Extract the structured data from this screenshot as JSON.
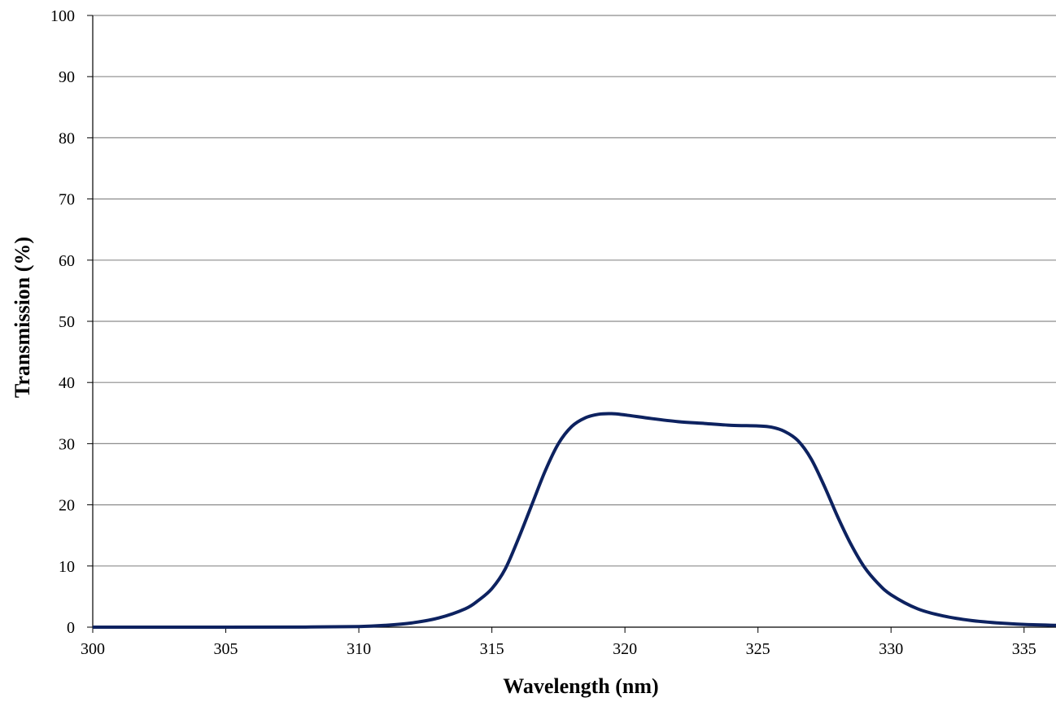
{
  "chart_data": {
    "type": "line",
    "title": "",
    "xlabel": "Wavelength (nm)",
    "ylabel": "Transmission (%)",
    "xlim": [
      300,
      336.2
    ],
    "ylim": [
      0,
      100
    ],
    "x_ticks": [
      "300",
      "305",
      "310",
      "315",
      "320",
      "325",
      "330",
      "335"
    ],
    "y_ticks": [
      "0",
      "10",
      "20",
      "30",
      "40",
      "50",
      "60",
      "70",
      "80",
      "90",
      "100"
    ],
    "grid": "horizontal",
    "colors": {
      "line": "#0d2260",
      "grid": "#8c8c8c",
      "axis": "#000000"
    },
    "series": [
      {
        "x": [
          300,
          305,
          308,
          310,
          311,
          312,
          313,
          314,
          314.5,
          315,
          315.5,
          316,
          316.5,
          317,
          317.5,
          318,
          318.5,
          319,
          319.5,
          320,
          321,
          322,
          323,
          324,
          325,
          325.5,
          326,
          326.5,
          327,
          327.5,
          328,
          328.5,
          329,
          329.5,
          330,
          331,
          332,
          333,
          334,
          335,
          336.2
        ],
        "y": [
          0,
          0,
          0.02,
          0.1,
          0.3,
          0.7,
          1.5,
          3.0,
          4.4,
          6.3,
          9.5,
          14.5,
          20.0,
          25.5,
          30.0,
          32.8,
          34.2,
          34.8,
          34.9,
          34.7,
          34.1,
          33.6,
          33.3,
          33.0,
          32.9,
          32.7,
          32.0,
          30.5,
          27.5,
          23.0,
          18.0,
          13.5,
          9.8,
          7.2,
          5.3,
          3.0,
          1.8,
          1.1,
          0.7,
          0.45,
          0.3
        ]
      }
    ]
  }
}
